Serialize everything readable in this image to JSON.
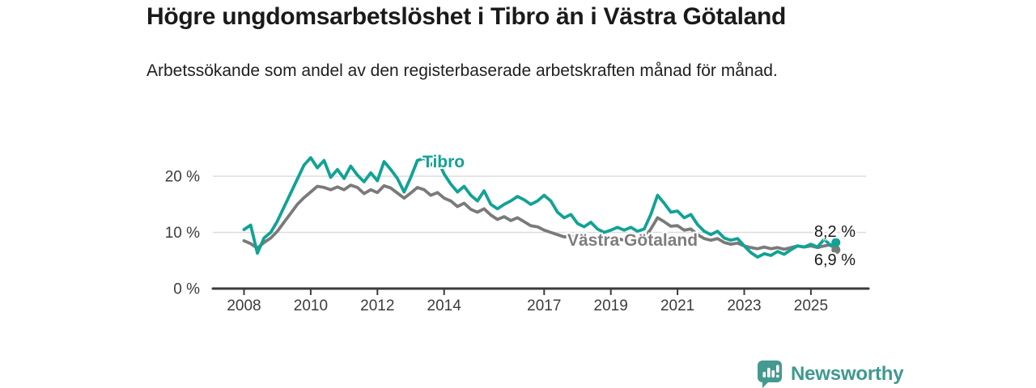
{
  "title": "Högre ungdomsarbetslöshet i Tibro än i Västra Götaland",
  "subtitle": "Arbetssökande som andel av den registerbaserade arbetskraften månad för månad.",
  "branding": {
    "logo_text": "Newsworthy",
    "logo_icon": "bar-chart-speech-bubble-icon",
    "logo_color": "#45998f"
  },
  "chart_data": {
    "type": "line",
    "title": "Högre ungdomsarbetslöshet i Tibro än i Västra Götaland",
    "subtitle": "Arbetssökande som andel av den registerbaserade arbetskraften månad för månad.",
    "unit": "%",
    "grid": "horizontal",
    "legend_position": "inline-on-line",
    "colors": {
      "tibro": "#12a296",
      "vastra_gotaland": "#7a7a7a",
      "gridline": "#dcdcdc",
      "axis": "#3c3c3c"
    },
    "x_axis": {
      "label": "",
      "tick_labels": [
        "2008",
        "2010",
        "2012",
        "2014",
        "2017",
        "2019",
        "2021",
        "2023",
        "2025"
      ],
      "ticks": [
        2008,
        2010,
        2012,
        2014,
        2017,
        2019,
        2021,
        2023,
        2025
      ],
      "range": [
        2007.05,
        2026.75
      ]
    },
    "y_axis": {
      "label": "",
      "tick_labels": [
        "0 %",
        "10 %",
        "20 %"
      ],
      "ticks": [
        0,
        10,
        20
      ],
      "range": [
        0,
        24.8
      ]
    },
    "x": [
      2008,
      2008.2,
      2008.4,
      2008.6,
      2008.8,
      2009,
      2009.2,
      2009.4,
      2009.6,
      2009.8,
      2010,
      2010.2,
      2010.4,
      2010.6,
      2010.8,
      2011,
      2011.2,
      2011.4,
      2011.6,
      2011.8,
      2012,
      2012.2,
      2012.4,
      2012.6,
      2012.8,
      2013,
      2013.2,
      2013.4,
      2013.6,
      2013.8,
      2014,
      2014.2,
      2014.4,
      2014.6,
      2014.8,
      2015,
      2015.2,
      2015.4,
      2015.6,
      2015.8,
      2016,
      2016.2,
      2016.4,
      2016.6,
      2016.8,
      2017,
      2017.2,
      2017.4,
      2017.6,
      2017.8,
      2018,
      2018.2,
      2018.4,
      2018.6,
      2018.8,
      2019,
      2019.2,
      2019.4,
      2019.6,
      2019.8,
      2020,
      2020.2,
      2020.4,
      2020.6,
      2020.8,
      2021,
      2021.2,
      2021.4,
      2021.6,
      2021.8,
      2022,
      2022.2,
      2022.4,
      2022.6,
      2022.8,
      2023,
      2023.2,
      2023.4,
      2023.6,
      2023.8,
      2024,
      2024.2,
      2024.4,
      2024.6,
      2024.8,
      2025,
      2025.2,
      2025.4,
      2025.6,
      2025.75
    ],
    "series": [
      {
        "name": "Tibro",
        "color": "#12a296",
        "end_value": 8.2,
        "end_label": "8,2 %",
        "values": [
          10.5,
          11.3,
          6.3,
          9.0,
          10.0,
          12.0,
          14.5,
          17.0,
          19.5,
          22.0,
          23.3,
          21.5,
          22.8,
          19.8,
          21.2,
          19.6,
          21.8,
          20.2,
          19.0,
          20.6,
          19.2,
          22.6,
          21.2,
          19.6,
          17.2,
          19.8,
          22.8,
          23.2,
          22.0,
          23.0,
          20.4,
          18.6,
          17.2,
          18.2,
          16.6,
          15.6,
          17.4,
          15.0,
          14.2,
          15.0,
          15.6,
          16.4,
          15.8,
          15.0,
          15.6,
          16.6,
          15.6,
          13.6,
          12.6,
          13.2,
          11.6,
          11.0,
          11.8,
          10.6,
          10.0,
          10.4,
          10.9,
          10.4,
          10.9,
          10.2,
          10.6,
          13.2,
          16.6,
          15.2,
          13.6,
          13.8,
          12.6,
          13.2,
          11.4,
          10.2,
          9.6,
          10.2,
          9.0,
          8.6,
          8.9,
          7.6,
          6.4,
          5.6,
          6.2,
          5.9,
          6.6,
          6.1,
          6.9,
          7.6,
          7.4,
          7.9,
          7.4,
          8.8,
          7.6,
          8.2
        ]
      },
      {
        "name": "Västra Götaland",
        "color": "#7a7a7a",
        "end_value": 6.9,
        "end_label": "6,9 %",
        "values": [
          8.5,
          8.0,
          7.2,
          8.2,
          9.0,
          10.2,
          11.8,
          13.4,
          15.0,
          16.2,
          17.2,
          18.2,
          18.0,
          17.6,
          18.1,
          17.6,
          18.4,
          18.0,
          16.9,
          17.6,
          17.1,
          18.3,
          17.9,
          17.0,
          16.1,
          17.0,
          18.0,
          17.6,
          16.6,
          17.1,
          16.1,
          15.6,
          14.6,
          15.2,
          14.1,
          13.6,
          14.2,
          13.1,
          12.3,
          12.8,
          12.1,
          12.6,
          11.9,
          11.2,
          11.0,
          10.4,
          10.0,
          9.6,
          9.2,
          9.4,
          8.9,
          9.2,
          8.8,
          8.4,
          8.7,
          8.6,
          8.9,
          8.6,
          8.9,
          8.6,
          8.9,
          10.6,
          12.6,
          11.9,
          11.1,
          11.2,
          10.4,
          10.6,
          9.6,
          8.9,
          8.6,
          8.9,
          8.2,
          7.9,
          8.1,
          7.6,
          7.3,
          7.1,
          7.4,
          7.1,
          7.3,
          7.0,
          7.3,
          7.6,
          7.4,
          7.6,
          7.3,
          7.6,
          7.8,
          6.9
        ]
      }
    ]
  }
}
